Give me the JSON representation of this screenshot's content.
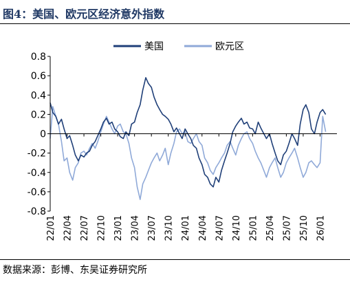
{
  "figure": {
    "title": "图4：美国、欧元区经济意外指数",
    "source": "数据来源：彭博、东吴证券研究所"
  },
  "colors": {
    "us": "#1f3f78",
    "ez": "#8fa9d8",
    "axis": "#000000"
  },
  "chart_data": {
    "type": "line",
    "title": "",
    "xlabel": "",
    "ylabel": "",
    "ylim": [
      -0.8,
      0.8
    ],
    "yticks": [
      "0.8",
      "0.6",
      "0.4",
      "0.2",
      "0",
      "-0.2",
      "-0.4",
      "-0.6",
      "-0.8"
    ],
    "ytick_values": [
      0.8,
      0.6,
      0.4,
      0.2,
      0,
      -0.2,
      -0.4,
      -0.6,
      -0.8
    ],
    "xlim": [
      "2022-01",
      "2026-04"
    ],
    "xticks": [
      "22/01",
      "22/04",
      "22/07",
      "22/10",
      "23/01",
      "23/04",
      "23/07",
      "23/10",
      "24/01",
      "24/04",
      "24/07",
      "24/10",
      "25/01",
      "25/04",
      "25/07",
      "25/10",
      "26/01"
    ],
    "legend": {
      "position": "top-center"
    },
    "grid": false,
    "series": [
      {
        "name": "美国",
        "key": "us",
        "points": [
          [
            "2022-01",
            0.32
          ],
          [
            "2022-01-15",
            0.22
          ],
          [
            "2022-02",
            0.18
          ],
          [
            "2022-02-15",
            0.1
          ],
          [
            "2022-03",
            0.15
          ],
          [
            "2022-03-15",
            0.05
          ],
          [
            "2022-04",
            -0.05
          ],
          [
            "2022-04-15",
            -0.02
          ],
          [
            "2022-05",
            -0.12
          ],
          [
            "2022-05-15",
            -0.22
          ],
          [
            "2022-06",
            -0.28
          ],
          [
            "2022-06-15",
            -0.22
          ],
          [
            "2022-07",
            -0.24
          ],
          [
            "2022-07-15",
            -0.2
          ],
          [
            "2022-08",
            -0.18
          ],
          [
            "2022-08-15",
            -0.12
          ],
          [
            "2022-09",
            -0.08
          ],
          [
            "2022-09-15",
            -0.02
          ],
          [
            "2022-10",
            0.05
          ],
          [
            "2022-10-15",
            0.12
          ],
          [
            "2022-11",
            0.16
          ],
          [
            "2022-11-15",
            0.1
          ],
          [
            "2022-12",
            0.12
          ],
          [
            "2022-12-15",
            0.05
          ],
          [
            "2023-01",
            0.02
          ],
          [
            "2023-01-15",
            -0.03
          ],
          [
            "2023-02",
            -0.05
          ],
          [
            "2023-02-15",
            0.02
          ],
          [
            "2023-03",
            -0.02
          ],
          [
            "2023-03-15",
            0.1
          ],
          [
            "2023-04",
            0.12
          ],
          [
            "2023-04-15",
            0.22
          ],
          [
            "2023-05",
            0.3
          ],
          [
            "2023-05-15",
            0.45
          ],
          [
            "2023-06",
            0.58
          ],
          [
            "2023-06-15",
            0.52
          ],
          [
            "2023-07",
            0.48
          ],
          [
            "2023-07-15",
            0.38
          ],
          [
            "2023-08",
            0.3
          ],
          [
            "2023-08-15",
            0.25
          ],
          [
            "2023-09",
            0.2
          ],
          [
            "2023-09-15",
            0.18
          ],
          [
            "2023-10",
            0.15
          ],
          [
            "2023-10-15",
            0.1
          ],
          [
            "2023-11",
            0.02
          ],
          [
            "2023-11-15",
            0.06
          ],
          [
            "2023-12",
            0.0
          ],
          [
            "2023-12-15",
            -0.05
          ],
          [
            "2024-01",
            0.05
          ],
          [
            "2024-01-15",
            0.0
          ],
          [
            "2024-02",
            -0.05
          ],
          [
            "2024-02-15",
            -0.12
          ],
          [
            "2024-03",
            -0.15
          ],
          [
            "2024-03-15",
            -0.25
          ],
          [
            "2024-04",
            -0.32
          ],
          [
            "2024-04-15",
            -0.42
          ],
          [
            "2024-05",
            -0.45
          ],
          [
            "2024-05-15",
            -0.52
          ],
          [
            "2024-06",
            -0.55
          ],
          [
            "2024-06-15",
            -0.45
          ],
          [
            "2024-07",
            -0.5
          ],
          [
            "2024-07-15",
            -0.38
          ],
          [
            "2024-08",
            -0.28
          ],
          [
            "2024-08-15",
            -0.2
          ],
          [
            "2024-09",
            -0.1
          ],
          [
            "2024-09-15",
            0.02
          ],
          [
            "2024-10",
            0.08
          ],
          [
            "2024-10-15",
            0.12
          ],
          [
            "2024-11",
            0.16
          ],
          [
            "2024-11-15",
            0.1
          ],
          [
            "2024-12",
            0.12
          ],
          [
            "2024-12-15",
            0.06
          ],
          [
            "2025-01",
            0.05
          ],
          [
            "2025-01-15",
            0.0
          ],
          [
            "2025-02",
            0.12
          ],
          [
            "2025-02-15",
            0.06
          ],
          [
            "2025-03",
            0.0
          ],
          [
            "2025-03-15",
            -0.05
          ],
          [
            "2025-04",
            0.0
          ],
          [
            "2025-04-15",
            -0.1
          ],
          [
            "2025-05",
            -0.2
          ],
          [
            "2025-05-15",
            -0.28
          ],
          [
            "2025-06",
            -0.32
          ],
          [
            "2025-06-15",
            -0.22
          ],
          [
            "2025-07",
            -0.18
          ],
          [
            "2025-07-15",
            -0.1
          ],
          [
            "2025-08",
            0.0
          ],
          [
            "2025-08-15",
            -0.05
          ],
          [
            "2025-09",
            -0.12
          ],
          [
            "2025-09-15",
            0.1
          ],
          [
            "2025-10",
            0.25
          ],
          [
            "2025-10-15",
            0.3
          ],
          [
            "2025-11",
            0.22
          ],
          [
            "2025-11-15",
            0.05
          ],
          [
            "2025-12",
            0.0
          ],
          [
            "2025-12-15",
            0.12
          ],
          [
            "2026-01",
            0.22
          ],
          [
            "2026-01-15",
            0.25
          ],
          [
            "2026-02",
            0.2
          ]
        ]
      },
      {
        "name": "欧元区",
        "key": "ez",
        "points": [
          [
            "2022-01",
            -0.05
          ],
          [
            "2022-01-15",
            0.28
          ],
          [
            "2022-02",
            0.18
          ],
          [
            "2022-02-15",
            0.1
          ],
          [
            "2022-03",
            -0.08
          ],
          [
            "2022-03-15",
            -0.28
          ],
          [
            "2022-04",
            -0.25
          ],
          [
            "2022-04-15",
            -0.4
          ],
          [
            "2022-05",
            -0.48
          ],
          [
            "2022-05-15",
            -0.35
          ],
          [
            "2022-06",
            -0.3
          ],
          [
            "2022-06-15",
            -0.2
          ],
          [
            "2022-07",
            -0.18
          ],
          [
            "2022-07-15",
            -0.22
          ],
          [
            "2022-08",
            -0.15
          ],
          [
            "2022-08-15",
            -0.1
          ],
          [
            "2022-09",
            -0.15
          ],
          [
            "2022-09-15",
            -0.08
          ],
          [
            "2022-10",
            0.02
          ],
          [
            "2022-10-15",
            0.1
          ],
          [
            "2022-11",
            0.18
          ],
          [
            "2022-11-15",
            0.12
          ],
          [
            "2022-12",
            0.05
          ],
          [
            "2022-12-15",
            0.0
          ],
          [
            "2023-01",
            0.08
          ],
          [
            "2023-01-15",
            0.1
          ],
          [
            "2023-02",
            0.02
          ],
          [
            "2023-02-15",
            0.0
          ],
          [
            "2023-03",
            -0.1
          ],
          [
            "2023-03-15",
            -0.25
          ],
          [
            "2023-04",
            -0.35
          ],
          [
            "2023-04-15",
            -0.55
          ],
          [
            "2023-05",
            -0.68
          ],
          [
            "2023-05-15",
            -0.52
          ],
          [
            "2023-06",
            -0.45
          ],
          [
            "2023-06-15",
            -0.38
          ],
          [
            "2023-07",
            -0.3
          ],
          [
            "2023-07-15",
            -0.25
          ],
          [
            "2023-08",
            -0.2
          ],
          [
            "2023-08-15",
            -0.28
          ],
          [
            "2023-09",
            -0.22
          ],
          [
            "2023-09-15",
            -0.15
          ],
          [
            "2023-10",
            -0.32
          ],
          [
            "2023-10-15",
            -0.2
          ],
          [
            "2023-11",
            -0.1
          ],
          [
            "2023-11-15",
            0.02
          ],
          [
            "2023-12",
            0.05
          ],
          [
            "2023-12-15",
            0.0
          ],
          [
            "2024-01",
            0.02
          ],
          [
            "2024-01-15",
            -0.08
          ],
          [
            "2024-02",
            -0.1
          ],
          [
            "2024-02-15",
            -0.05
          ],
          [
            "2024-03",
            0.0
          ],
          [
            "2024-03-15",
            -0.08
          ],
          [
            "2024-04",
            -0.12
          ],
          [
            "2024-04-15",
            -0.25
          ],
          [
            "2024-05",
            -0.3
          ],
          [
            "2024-05-15",
            -0.38
          ],
          [
            "2024-06",
            -0.42
          ],
          [
            "2024-06-15",
            -0.35
          ],
          [
            "2024-07",
            -0.3
          ],
          [
            "2024-07-15",
            -0.25
          ],
          [
            "2024-08",
            -0.2
          ],
          [
            "2024-08-15",
            -0.12
          ],
          [
            "2024-09",
            -0.08
          ],
          [
            "2024-09-15",
            -0.15
          ],
          [
            "2024-10",
            -0.22
          ],
          [
            "2024-10-15",
            -0.12
          ],
          [
            "2024-11",
            -0.05
          ],
          [
            "2024-11-15",
            0.0
          ],
          [
            "2024-12",
            0.02
          ],
          [
            "2024-12-15",
            -0.05
          ],
          [
            "2025-01",
            -0.1
          ],
          [
            "2025-01-15",
            -0.18
          ],
          [
            "2025-02",
            -0.25
          ],
          [
            "2025-02-15",
            -0.3
          ],
          [
            "2025-03",
            -0.38
          ],
          [
            "2025-03-15",
            -0.45
          ],
          [
            "2025-04",
            -0.35
          ],
          [
            "2025-04-15",
            -0.3
          ],
          [
            "2025-05",
            -0.25
          ],
          [
            "2025-05-15",
            -0.35
          ],
          [
            "2025-06",
            -0.45
          ],
          [
            "2025-06-15",
            -0.4
          ],
          [
            "2025-07",
            -0.3
          ],
          [
            "2025-07-15",
            -0.25
          ],
          [
            "2025-08",
            -0.2
          ],
          [
            "2025-08-15",
            -0.15
          ],
          [
            "2025-09",
            -0.25
          ],
          [
            "2025-09-15",
            -0.35
          ],
          [
            "2025-10",
            -0.45
          ],
          [
            "2025-10-15",
            -0.4
          ],
          [
            "2025-11",
            -0.3
          ],
          [
            "2025-11-15",
            -0.28
          ],
          [
            "2025-12",
            -0.32
          ],
          [
            "2025-12-15",
            -0.35
          ],
          [
            "2026-01",
            -0.3
          ],
          [
            "2026-01-15",
            0.18
          ],
          [
            "2026-02",
            0.02
          ]
        ]
      }
    ]
  }
}
